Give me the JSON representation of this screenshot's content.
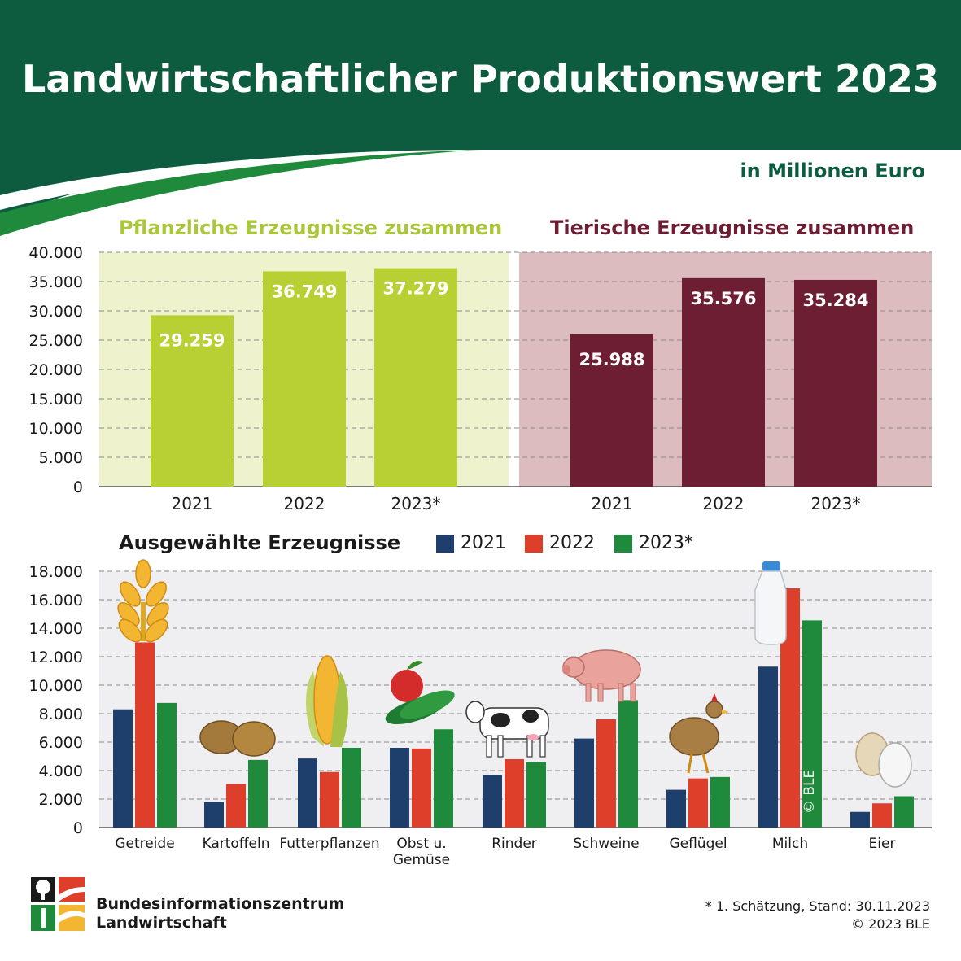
{
  "header": {
    "title": "Landwirtschaftlicher Produktionswert 2023",
    "unit": "in Millionen Euro"
  },
  "colors": {
    "header_green": "#0e5c3f",
    "plant_bar": "#b9d034",
    "plant_bg": "#eef3cd",
    "animal_bar": "#6e1e33",
    "animal_bg": "#dcbcbf",
    "y2021": "#1e3f6b",
    "y2022": "#dd3f2a",
    "y2023": "#1f8a3c"
  },
  "chart_data": [
    {
      "type": "bar",
      "title": "Pflanzliche Erzeugnisse zusammen",
      "categories": [
        "2021",
        "2022",
        "2023*"
      ],
      "values": [
        29259,
        36749,
        37279
      ],
      "value_labels": [
        "29.259",
        "36.749",
        "37.279"
      ],
      "ylim": [
        0,
        40000
      ],
      "yticks": [
        "0",
        "5.000",
        "10.000",
        "15.000",
        "20.000",
        "25.000",
        "30.000",
        "35.000",
        "40.000"
      ],
      "grid": true
    },
    {
      "type": "bar",
      "title": "Tierische Erzeugnisse zusammen",
      "categories": [
        "2021",
        "2022",
        "2023*"
      ],
      "values": [
        25988,
        35576,
        35284
      ],
      "value_labels": [
        "25.988",
        "35.576",
        "35.284"
      ],
      "ylim": [
        0,
        40000
      ],
      "grid": true
    },
    {
      "type": "bar",
      "title": "Ausgewählte Erzeugnisse",
      "categories": [
        "Getreide",
        "Kartoffeln",
        "Futterpflanzen",
        "Obst u. Gemüse",
        "Rinder",
        "Schweine",
        "Geflügel",
        "Milch",
        "Eier"
      ],
      "series": [
        {
          "name": "2021",
          "values": [
            8300,
            1800,
            4850,
            5600,
            3700,
            6250,
            2650,
            11300,
            1100
          ]
        },
        {
          "name": "2022",
          "values": [
            13000,
            3050,
            3900,
            5550,
            4800,
            7600,
            3450,
            16800,
            1700
          ]
        },
        {
          "name": "2023*",
          "values": [
            8750,
            4750,
            5600,
            6900,
            4600,
            8950,
            3550,
            14550,
            2200
          ]
        }
      ],
      "ylim": [
        0,
        18000
      ],
      "yticks": [
        "0",
        "2.000",
        "4.000",
        "6.000",
        "8.000",
        "10.000",
        "12.000",
        "14.000",
        "16.000",
        "18.000"
      ],
      "legend": "top",
      "grid": true
    }
  ],
  "footer": {
    "org_line1": "Bundesinformationszentrum",
    "org_line2": "Landwirtschaft",
    "note": "* 1. Schätzung, Stand: 30.11.2023",
    "copyright": "© 2023 BLE",
    "watermark": "© BLE"
  }
}
